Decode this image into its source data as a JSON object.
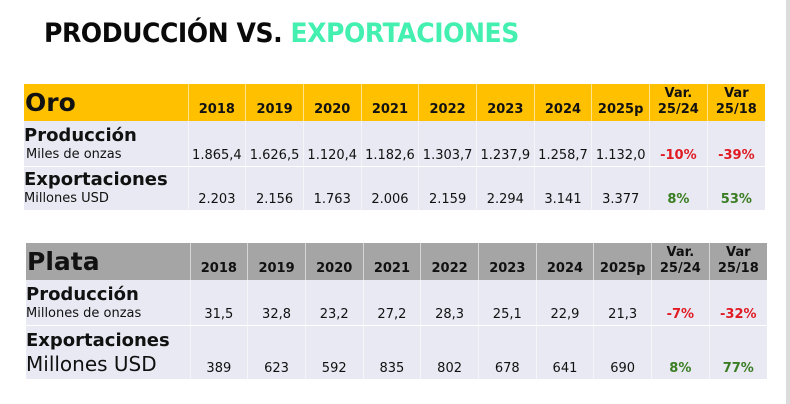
{
  "title": {
    "part1": "PRODUCCIÓN VS.",
    "part2": "EXPORTACIONES",
    "accent_color": "#43f0b0"
  },
  "columns": [
    "2018",
    "2019",
    "2020",
    "2021",
    "2022",
    "2023",
    "2024",
    "2025p"
  ],
  "var_columns": [
    {
      "line1": "Var.",
      "line2": "25/24"
    },
    {
      "line1": "Var",
      "line2": "25/18"
    }
  ],
  "tables": [
    {
      "name": "Oro",
      "header_color": "#ffc000",
      "rows": [
        {
          "label": "Producción",
          "unit": "Miles de onzas",
          "values": [
            "1.865,4",
            "1.626,5",
            "1.120,4",
            "1.182,6",
            "1.303,7",
            "1.237,9",
            "1.258,7",
            "1.132,0"
          ],
          "var_25_24": "-10%",
          "var_25_18": "-39%"
        },
        {
          "label": "Exportaciones",
          "unit": "Millones USD",
          "values": [
            "2.203",
            "2.156",
            "1.763",
            "2.006",
            "2.159",
            "2.294",
            "3.141",
            "3.377"
          ],
          "var_25_24": "8%",
          "var_25_18": "53%"
        }
      ]
    },
    {
      "name": "Plata",
      "header_color": "#a5a5a5",
      "rows": [
        {
          "label": "Producción",
          "unit": "Millones de onzas",
          "values": [
            "31,5",
            "32,8",
            "23,2",
            "27,2",
            "28,3",
            "25,1",
            "22,9",
            "21,3"
          ],
          "var_25_24": "-7%",
          "var_25_18": "-32%"
        },
        {
          "label": "Exportaciones",
          "unit": "Millones USD",
          "values": [
            "389",
            "623",
            "592",
            "835",
            "802",
            "678",
            "641",
            "690"
          ],
          "var_25_24": "8%",
          "var_25_18": "77%"
        }
      ]
    }
  ],
  "colors": {
    "negative": "#e01b24",
    "positive": "#3a7d22",
    "row_background": "#e8e9f2"
  }
}
